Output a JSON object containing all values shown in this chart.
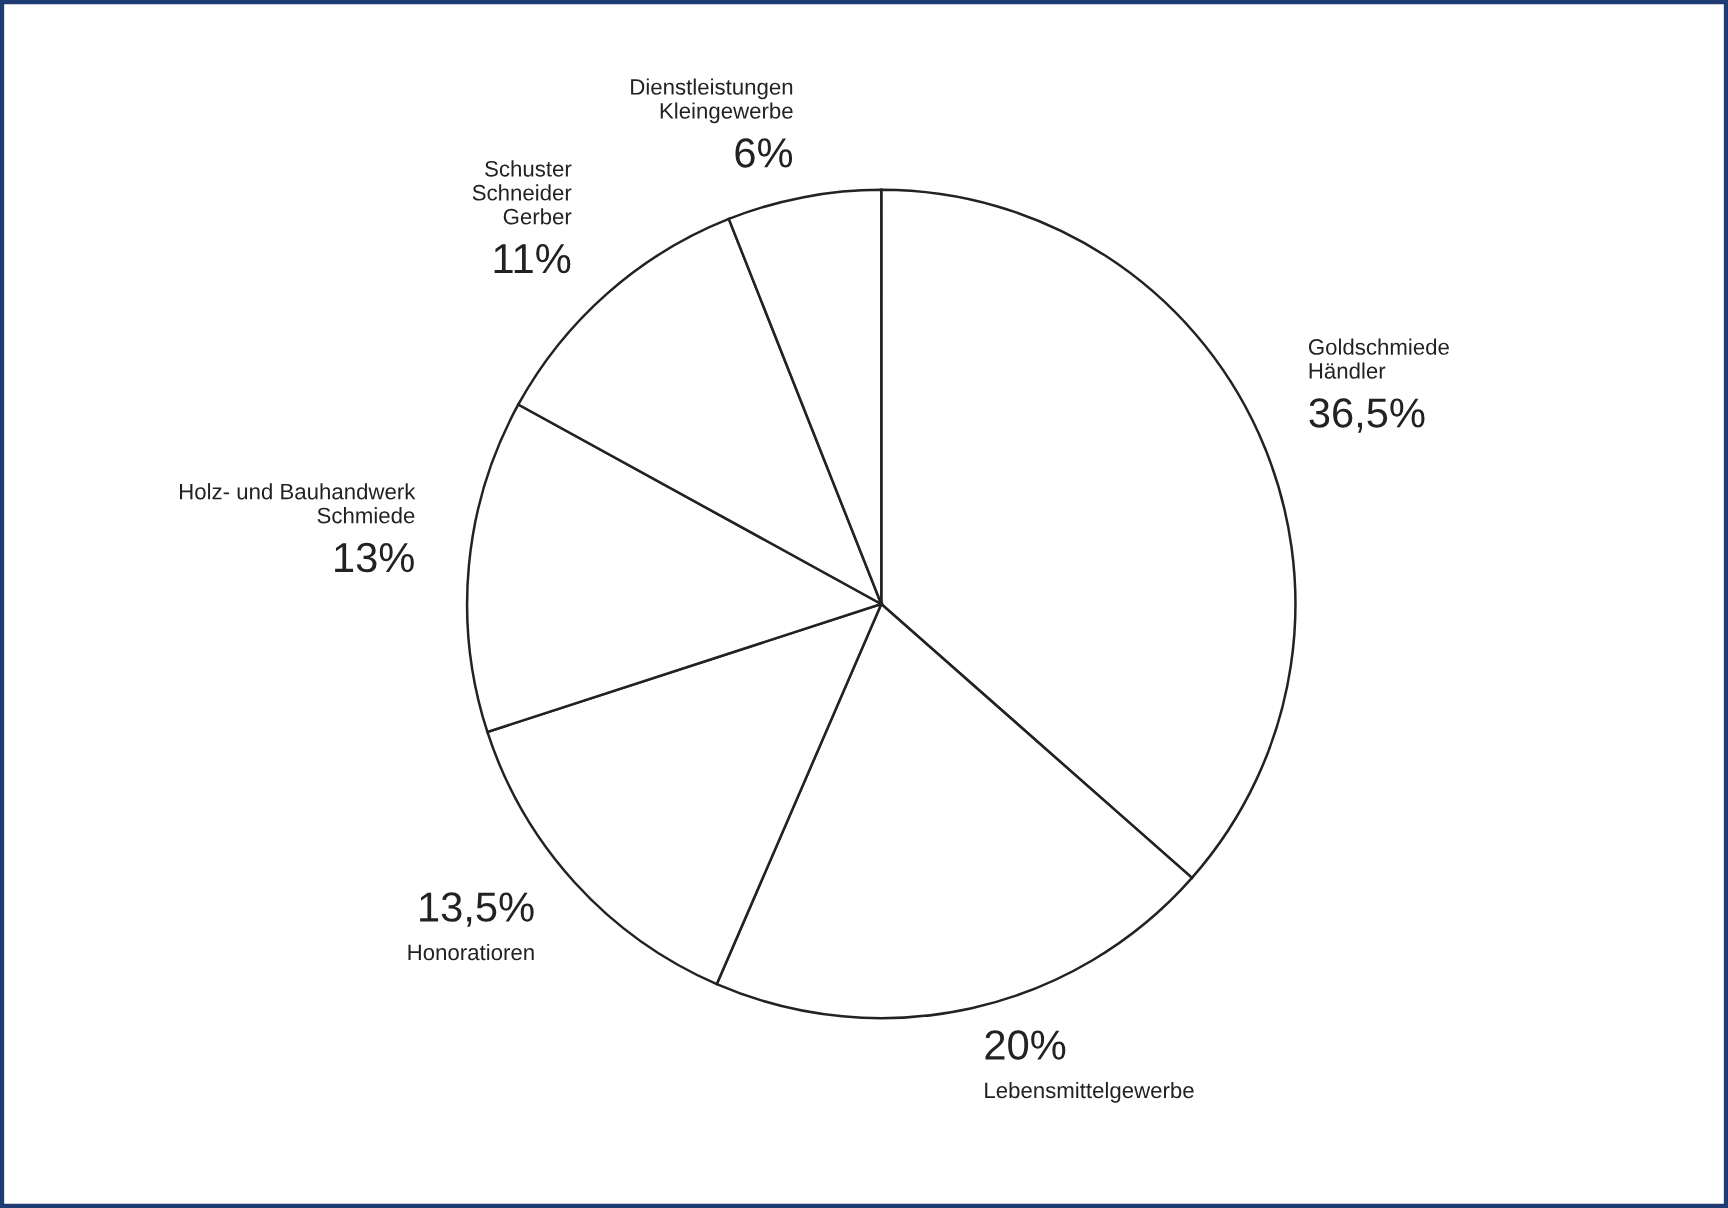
{
  "chart_data": {
    "type": "pie",
    "categories": [
      "Goldschmiede\nHändler",
      "Lebensmittelgewerbe",
      "Honoratioren",
      "Holz- und Bauhandwerk\nSchmiede",
      "Schuster\nSchneider\nGerber",
      "Dienstleistungen\nKleingewerbe"
    ],
    "values": [
      36.5,
      20,
      13.5,
      13,
      11,
      6
    ],
    "value_labels": [
      "36,5%",
      "20%",
      "13,5%",
      "13%",
      "11%",
      "6%"
    ],
    "colors": [
      "#ffffff",
      "#ffffff",
      "#ffffff",
      "#ffffff",
      "#ffffff",
      "#ffffff"
    ],
    "legend": false
  }
}
